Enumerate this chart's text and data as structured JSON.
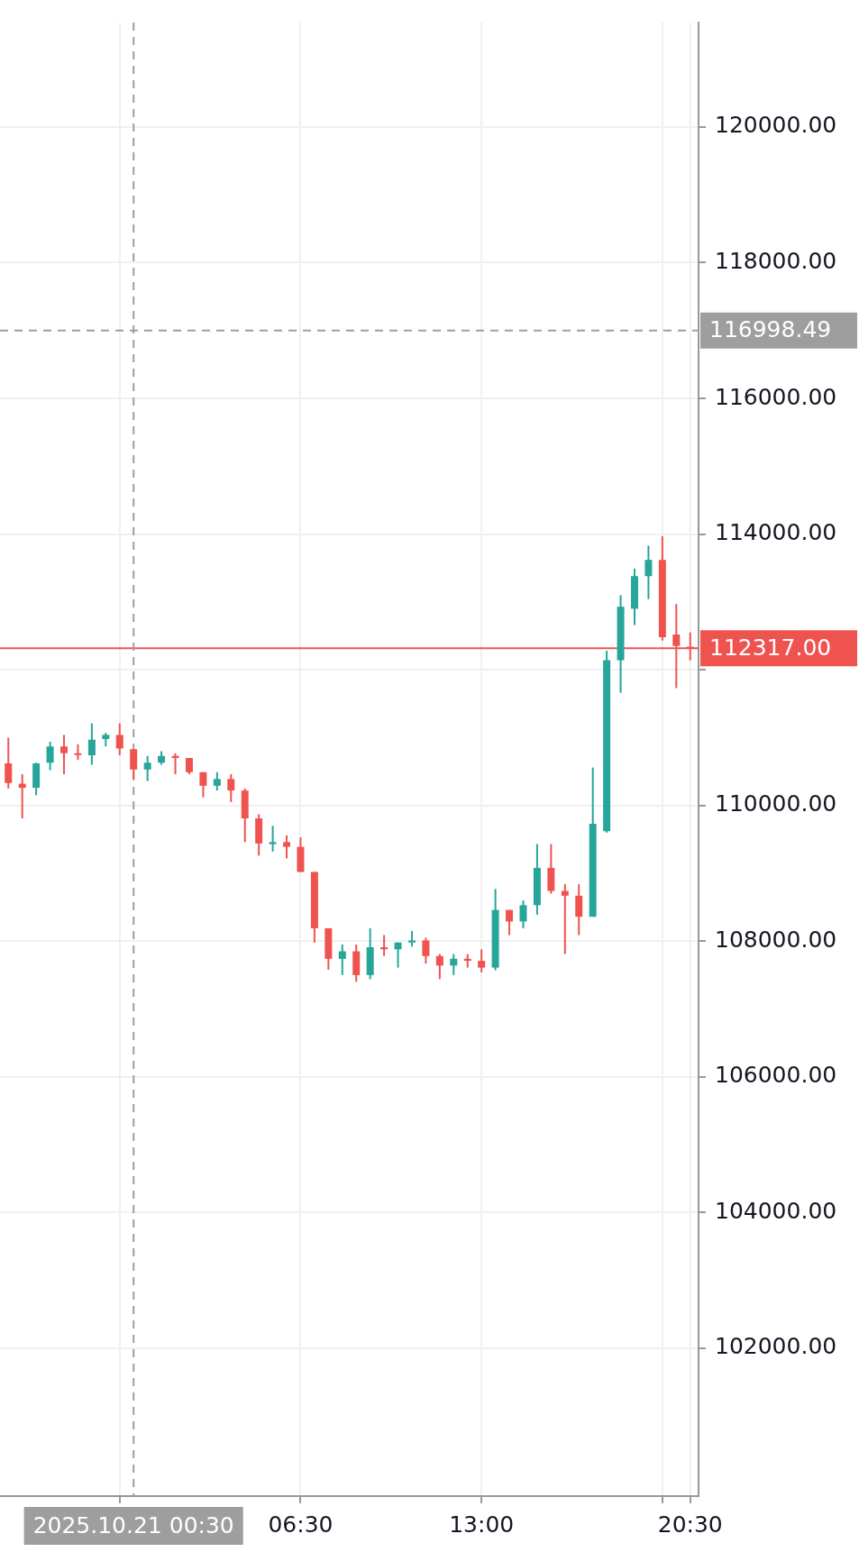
{
  "chart_data": {
    "type": "candlestick",
    "x": [
      -4,
      -3.5,
      -3,
      -2.5,
      -2,
      -1.5,
      -1,
      -0.5,
      0,
      0.5,
      1,
      1.5,
      2,
      2.5,
      3,
      3.5,
      4,
      4.5,
      5,
      5.5,
      6,
      6.5,
      7,
      7.5,
      8,
      8.5,
      9,
      9.5,
      10,
      10.5,
      11,
      11.5,
      12,
      12.5,
      13,
      13.5,
      14,
      14.5,
      15,
      15.5,
      16,
      16.5,
      17,
      17.5,
      18,
      18.5,
      19,
      19.5,
      20,
      20.5
    ],
    "ohlc": [
      [
        110620,
        111000,
        110250,
        110330
      ],
      [
        110320,
        110460,
        109810,
        110260
      ],
      [
        110260,
        110630,
        110150,
        110620
      ],
      [
        110630,
        110940,
        110520,
        110870
      ],
      [
        110870,
        111040,
        110460,
        110770
      ],
      [
        110770,
        110900,
        110670,
        110750
      ],
      [
        110740,
        111210,
        110600,
        110970
      ],
      [
        110980,
        111070,
        110870,
        111040
      ],
      [
        111040,
        111210,
        110740,
        110840
      ],
      [
        110830,
        110830,
        110390,
        110530
      ],
      [
        110530,
        110730,
        110360,
        110630
      ],
      [
        110630,
        110800,
        110600,
        110730
      ],
      [
        110730,
        110770,
        110460,
        110700
      ],
      [
        110700,
        110700,
        110460,
        110490
      ],
      [
        110490,
        110490,
        110120,
        110290
      ],
      [
        110290,
        110490,
        110220,
        110390
      ],
      [
        110390,
        110460,
        110050,
        110220
      ],
      [
        110220,
        110250,
        109460,
        109810
      ],
      [
        109810,
        109870,
        109260,
        109440
      ],
      [
        109430,
        109700,
        109320,
        109460
      ],
      [
        109460,
        109560,
        109220,
        109390
      ],
      [
        109390,
        109530,
        109020,
        109020
      ],
      [
        109020,
        109020,
        107980,
        108190
      ],
      [
        108190,
        108190,
        107580,
        107740
      ],
      [
        107740,
        107950,
        107500,
        107850
      ],
      [
        107850,
        107950,
        107400,
        107500
      ],
      [
        107500,
        108190,
        107440,
        107910
      ],
      [
        107910,
        108090,
        107780,
        107880
      ],
      [
        107880,
        107980,
        107610,
        107980
      ],
      [
        107980,
        108150,
        107920,
        108010
      ],
      [
        108010,
        108050,
        107670,
        107780
      ],
      [
        107780,
        107810,
        107440,
        107640
      ],
      [
        107640,
        107810,
        107500,
        107740
      ],
      [
        107740,
        107810,
        107610,
        107710
      ],
      [
        107710,
        107880,
        107540,
        107610
      ],
      [
        107610,
        108770,
        107570,
        108460
      ],
      [
        108460,
        108460,
        108090,
        108290
      ],
      [
        108290,
        108600,
        108190,
        108530
      ],
      [
        108530,
        109430,
        108390,
        109080
      ],
      [
        109080,
        109430,
        108700,
        108740
      ],
      [
        108740,
        108840,
        107810,
        108670
      ],
      [
        108670,
        108840,
        108090,
        108360
      ],
      [
        108360,
        110560,
        108360,
        109730
      ],
      [
        109620,
        112280,
        109600,
        112140
      ],
      [
        112140,
        113100,
        111660,
        112930
      ],
      [
        112900,
        113490,
        112660,
        113380
      ],
      [
        113380,
        113830,
        113040,
        113620
      ],
      [
        113620,
        113970,
        112430,
        112480
      ],
      [
        112520,
        112970,
        111730,
        112350
      ],
      [
        112340,
        112550,
        112140,
        112317
      ]
    ],
    "colors": [
      "#ef5350",
      "#ef5350",
      "#26a69a",
      "#26a69a",
      "#ef5350",
      "#ef5350",
      "#26a69a",
      "#26a69a",
      "#ef5350",
      "#ef5350",
      "#26a69a",
      "#26a69a",
      "#ef5350",
      "#ef5350",
      "#ef5350",
      "#26a69a",
      "#ef5350",
      "#ef5350",
      "#ef5350",
      "#26a69a",
      "#ef5350",
      "#ef5350",
      "#ef5350",
      "#ef5350",
      "#26a69a",
      "#ef5350",
      "#26a69a",
      "#ef5350",
      "#26a69a",
      "#26a69a",
      "#ef5350",
      "#ef5350",
      "#26a69a",
      "#ef5350",
      "#ef5350",
      "#26a69a",
      "#ef5350",
      "#26a69a",
      "#26a69a",
      "#ef5350",
      "#ef5350",
      "#ef5350",
      "#26a69a",
      "#26a69a",
      "#26a69a",
      "#26a69a",
      "#26a69a",
      "#ef5350",
      "#ef5350",
      "#ef5350"
    ],
    "xlim": [
      -4.3,
      20.8
    ],
    "xticks": [
      {
        "value": 0,
        "label": null
      },
      {
        "value": 6.5,
        "label": "06:30"
      },
      {
        "value": 13,
        "label": "13:00"
      },
      {
        "value": 19.5,
        "label": null
      },
      {
        "value": 20.5,
        "label": "20:30"
      }
    ],
    "ylim": [
      99820,
      121540
    ],
    "yticks": [
      {
        "value": 102000,
        "label": "102000.00"
      },
      {
        "value": 104000,
        "label": "104000.00"
      },
      {
        "value": 106000,
        "label": "106000.00"
      },
      {
        "value": 108000,
        "label": "108000.00"
      },
      {
        "value": 110000,
        "label": "110000.00"
      },
      {
        "value": 112000,
        "label": null
      },
      {
        "value": 114000,
        "label": "114000.00"
      },
      {
        "value": 116000,
        "label": "116000.00"
      },
      {
        "value": 118000,
        "label": "118000.00"
      },
      {
        "value": 120000,
        "label": "120000.00"
      }
    ],
    "ref_lines": [
      {
        "axis": "y",
        "value": 116998.49,
        "label": "116998.49",
        "color": "#9e9e9e",
        "line_style": "dashed"
      },
      {
        "axis": "y",
        "value": 112317,
        "label": "112317.00",
        "color": "#ef5350",
        "line_style": "solid"
      },
      {
        "axis": "x",
        "value": 0.5,
        "label": "2025.10.21 00:30",
        "color": "#9e9e9e",
        "line_style": "dashed"
      }
    ],
    "grid": true
  }
}
